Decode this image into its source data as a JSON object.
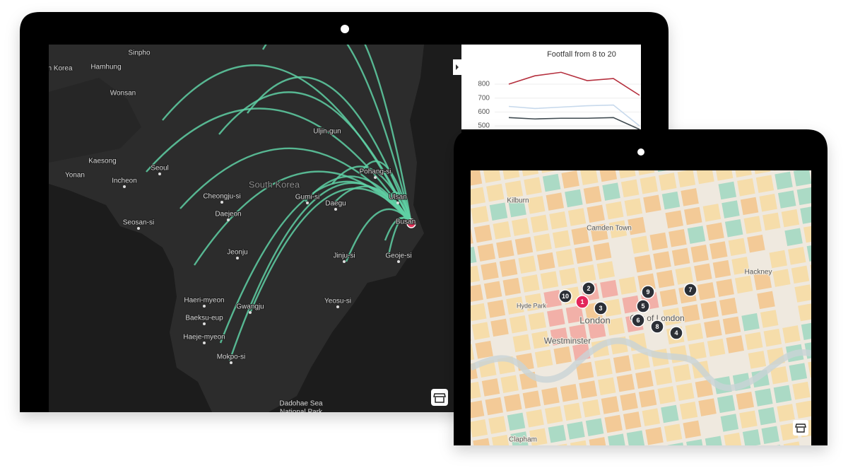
{
  "korea_map": {
    "labels": [
      "Sinpho",
      "n Korea",
      "Hamhung",
      "Wonsan",
      "Uljin-gun",
      "Kaesong",
      "Seoul",
      "Yonan",
      "Incheon",
      "South Korea",
      "Pohang-si",
      "Cheongju-si",
      "Gumi-si",
      "Daegu",
      "Ulsan",
      "Daejeon",
      "Busan",
      "Seosan-si",
      "Jeonju",
      "Jinju-si",
      "Geoje-si",
      "Haeri-myeon",
      "Gwangju",
      "Yeosu-si",
      "Baeksu-eup",
      "Haeje-myeon",
      "Mokpo-si",
      "Dadohae Sea",
      "National Park"
    ]
  },
  "chart_data": {
    "type": "line",
    "title": "Footfall from 8 to 20",
    "series": [
      {
        "color": "#b5303e",
        "values": [
          800,
          860,
          885,
          825,
          840,
          720
        ]
      },
      {
        "color": "#c7d9ec",
        "values": [
          640,
          625,
          635,
          645,
          650,
          500
        ]
      },
      {
        "color": "#3f4a50",
        "values": [
          560,
          550,
          555,
          555,
          560,
          475
        ]
      }
    ],
    "ylim": [
      470,
      900
    ],
    "yticks": [
      500,
      600,
      700,
      800
    ],
    "grid": true
  },
  "london_map": {
    "labels": [
      "Kilburn",
      "Camden Town",
      "Hyde Park",
      "London",
      "Westminster",
      "City of London",
      "Hackney",
      "Clapham"
    ],
    "markers": [
      10,
      2,
      1,
      3,
      9,
      5,
      6,
      8,
      4,
      7
    ]
  }
}
